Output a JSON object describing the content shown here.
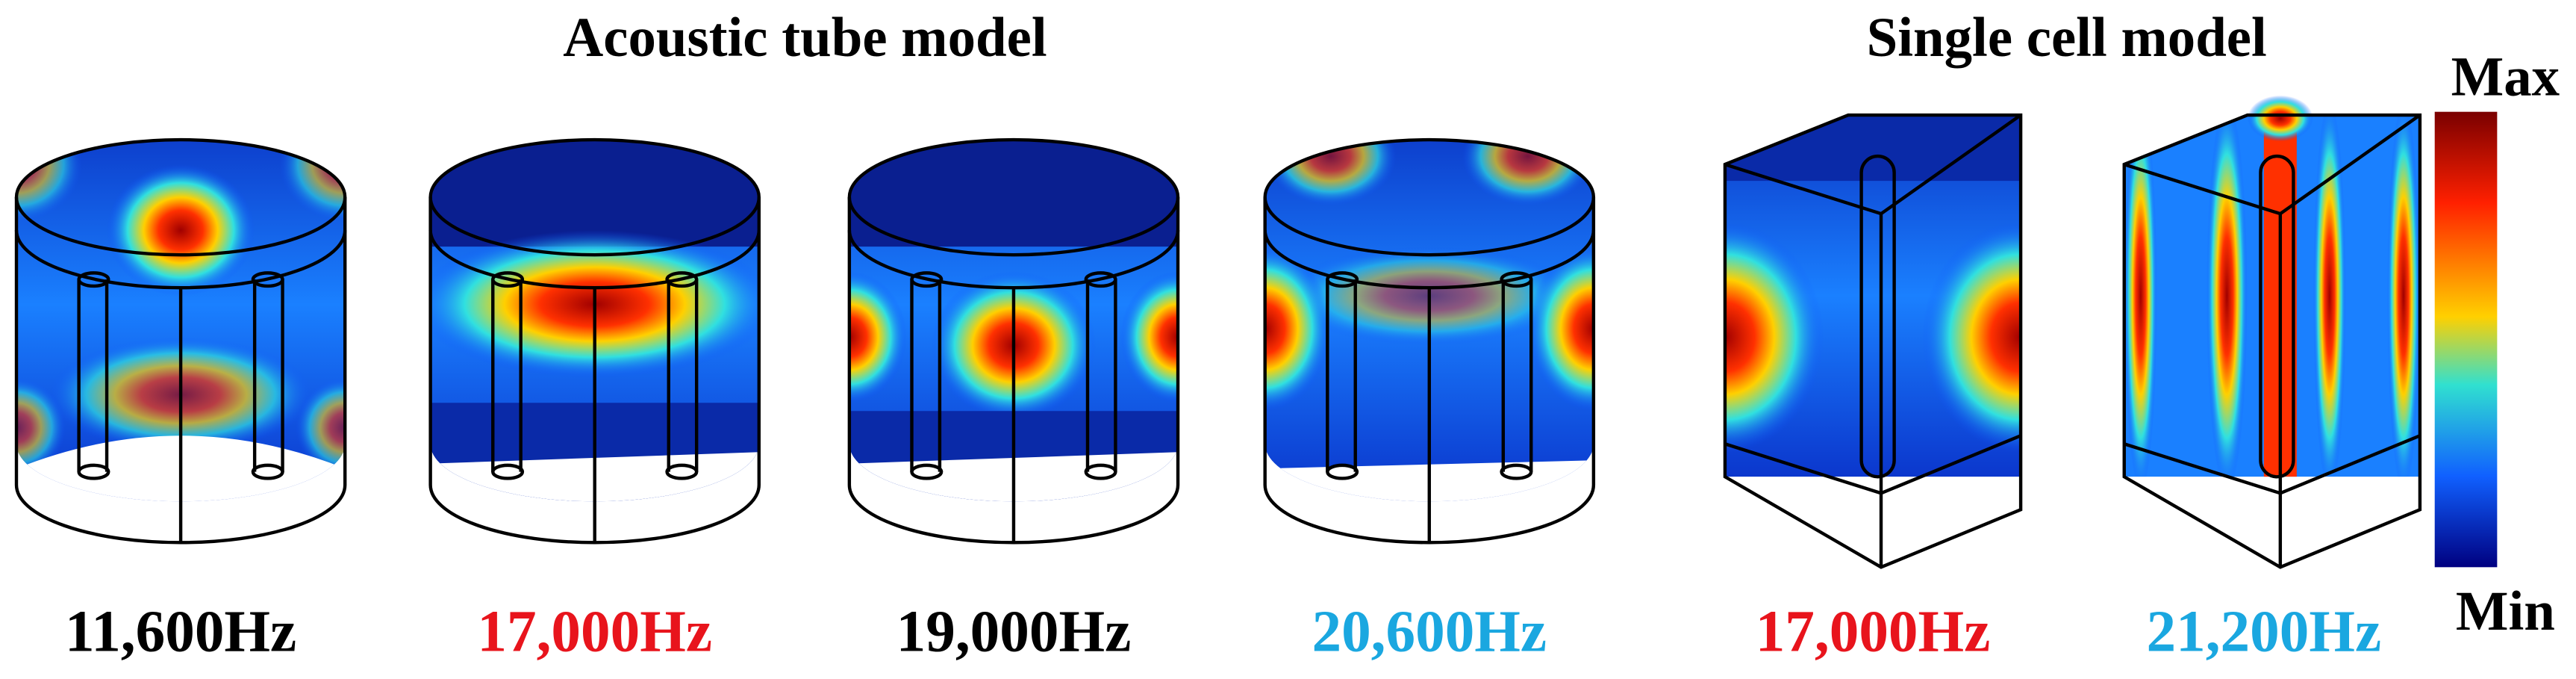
{
  "titles": [
    "Acoustic tube model",
    "Single cell model"
  ],
  "panels": [
    {
      "label": "11,600Hz",
      "color": "#000000"
    },
    {
      "label": "17,000Hz",
      "color": "#e8141c"
    },
    {
      "label": "19,000Hz",
      "color": "#000000"
    },
    {
      "label": "20,600Hz",
      "color": "#1aa7e0"
    },
    {
      "label": "17,000Hz",
      "color": "#e8141c"
    },
    {
      "label": "21,200Hz",
      "color": "#1aa7e0"
    }
  ],
  "colorbar": {
    "max": "Max",
    "min": "Min"
  }
}
